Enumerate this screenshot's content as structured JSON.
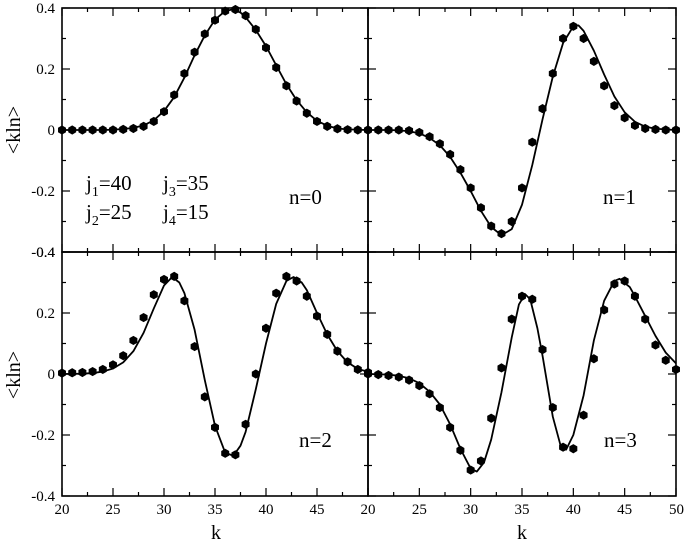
{
  "chart_data": {
    "type": "scatter",
    "layout": "2x2 panels with shared axes",
    "xlabel": "k",
    "ylabel": "<kln>",
    "xlim": [
      20,
      50
    ],
    "ylim": [
      -0.4,
      0.4
    ],
    "x_ticks": [
      "20",
      "25",
      "30",
      "35",
      "40",
      "45",
      "50"
    ],
    "y_ticks": [
      "-0.4",
      "-0.2",
      "0",
      "0.2",
      "0.4"
    ],
    "x_tick_values": [
      20,
      25,
      30,
      35,
      40,
      45,
      50
    ],
    "y_tick_values": [
      -0.4,
      -0.2,
      0,
      0.2,
      0.4
    ],
    "grid": false,
    "legend": "none",
    "point_color": "#000000",
    "line_color": "#000000",
    "annotation": {
      "j1_label": "j",
      "j1_sub": "1",
      "j1_value": "=40",
      "j2_label": "j",
      "j2_sub": "2",
      "j2_value": "=25",
      "j3_label": "j",
      "j3_sub": "3",
      "j3_value": "=35",
      "j4_label": "j",
      "j4_sub": "4",
      "j4_value": "=15"
    },
    "panels": [
      {
        "label": "n=0",
        "points": [
          [
            20,
            0.0
          ],
          [
            21,
            0.0
          ],
          [
            22,
            0.0
          ],
          [
            23,
            0.0
          ],
          [
            24,
            0.0
          ],
          [
            25,
            0.0
          ],
          [
            26,
            0.002
          ],
          [
            27,
            0.005
          ],
          [
            28,
            0.012
          ],
          [
            29,
            0.028
          ],
          [
            30,
            0.06
          ],
          [
            31,
            0.115
          ],
          [
            32,
            0.185
          ],
          [
            33,
            0.255
          ],
          [
            34,
            0.315
          ],
          [
            35,
            0.36
          ],
          [
            36,
            0.39
          ],
          [
            37,
            0.395
          ],
          [
            38,
            0.375
          ],
          [
            39,
            0.33
          ],
          [
            40,
            0.27
          ],
          [
            41,
            0.205
          ],
          [
            42,
            0.145
          ],
          [
            43,
            0.095
          ],
          [
            44,
            0.055
          ],
          [
            45,
            0.028
          ],
          [
            46,
            0.012
          ],
          [
            47,
            0.004
          ],
          [
            48,
            0.001
          ],
          [
            49,
            0.0
          ],
          [
            50,
            0.0
          ]
        ],
        "curve": [
          [
            20,
            0.0
          ],
          [
            22,
            0.0
          ],
          [
            24,
            0.0
          ],
          [
            25,
            0.001
          ],
          [
            26,
            0.003
          ],
          [
            27,
            0.007
          ],
          [
            28,
            0.015
          ],
          [
            29,
            0.032
          ],
          [
            30,
            0.062
          ],
          [
            31,
            0.108
          ],
          [
            32,
            0.172
          ],
          [
            33,
            0.245
          ],
          [
            34,
            0.31
          ],
          [
            35,
            0.362
          ],
          [
            36,
            0.39
          ],
          [
            36.7,
            0.395
          ],
          [
            37.5,
            0.385
          ],
          [
            38,
            0.37
          ],
          [
            39,
            0.328
          ],
          [
            40,
            0.275
          ],
          [
            41,
            0.212
          ],
          [
            42,
            0.15
          ],
          [
            43,
            0.098
          ],
          [
            44,
            0.058
          ],
          [
            45,
            0.03
          ],
          [
            46,
            0.014
          ],
          [
            47,
            0.005
          ],
          [
            48,
            0.002
          ],
          [
            50,
            0.0
          ]
        ]
      },
      {
        "label": "n=1",
        "points": [
          [
            20,
            0.0
          ],
          [
            21,
            0.0
          ],
          [
            22,
            0.0
          ],
          [
            23,
            0.0
          ],
          [
            24,
            -0.002
          ],
          [
            25,
            -0.008
          ],
          [
            26,
            -0.022
          ],
          [
            27,
            -0.045
          ],
          [
            28,
            -0.08
          ],
          [
            29,
            -0.13
          ],
          [
            30,
            -0.19
          ],
          [
            31,
            -0.255
          ],
          [
            32,
            -0.315
          ],
          [
            33,
            -0.34
          ],
          [
            34,
            -0.3
          ],
          [
            35,
            -0.19
          ],
          [
            36,
            -0.04
          ],
          [
            37,
            0.07
          ],
          [
            38,
            0.185
          ],
          [
            39,
            0.3
          ],
          [
            40,
            0.34
          ],
          [
            41,
            0.3
          ],
          [
            42,
            0.225
          ],
          [
            43,
            0.145
          ],
          [
            44,
            0.08
          ],
          [
            45,
            0.04
          ],
          [
            46,
            0.015
          ],
          [
            47,
            0.005
          ],
          [
            48,
            0.002
          ],
          [
            49,
            0.0
          ],
          [
            50,
            0.0
          ]
        ],
        "curve": [
          [
            20,
            0.0
          ],
          [
            22,
            0.0
          ],
          [
            23,
            -0.001
          ],
          [
            24,
            -0.004
          ],
          [
            25,
            -0.011
          ],
          [
            26,
            -0.026
          ],
          [
            27,
            -0.05
          ],
          [
            28,
            -0.088
          ],
          [
            29,
            -0.14
          ],
          [
            30,
            -0.2
          ],
          [
            31,
            -0.265
          ],
          [
            32,
            -0.318
          ],
          [
            33,
            -0.345
          ],
          [
            34,
            -0.325
          ],
          [
            35,
            -0.245
          ],
          [
            36,
            -0.115
          ],
          [
            37,
            0.035
          ],
          [
            38,
            0.175
          ],
          [
            39,
            0.285
          ],
          [
            40,
            0.34
          ],
          [
            40.5,
            0.343
          ],
          [
            41,
            0.325
          ],
          [
            42,
            0.26
          ],
          [
            43,
            0.182
          ],
          [
            44,
            0.11
          ],
          [
            45,
            0.058
          ],
          [
            46,
            0.027
          ],
          [
            47,
            0.011
          ],
          [
            48,
            0.004
          ],
          [
            50,
            0.0
          ]
        ]
      },
      {
        "label": "n=2",
        "points": [
          [
            20,
            0.003
          ],
          [
            21,
            0.004
          ],
          [
            22,
            0.005
          ],
          [
            23,
            0.008
          ],
          [
            24,
            0.015
          ],
          [
            25,
            0.03
          ],
          [
            26,
            0.06
          ],
          [
            27,
            0.11
          ],
          [
            28,
            0.185
          ],
          [
            29,
            0.26
          ],
          [
            30,
            0.31
          ],
          [
            31,
            0.32
          ],
          [
            32,
            0.24
          ],
          [
            33,
            0.09
          ],
          [
            34,
            -0.075
          ],
          [
            35,
            -0.175
          ],
          [
            36,
            -0.26
          ],
          [
            37,
            -0.265
          ],
          [
            38,
            -0.165
          ],
          [
            39,
            0.0
          ],
          [
            40,
            0.15
          ],
          [
            41,
            0.265
          ],
          [
            42,
            0.32
          ],
          [
            43,
            0.305
          ],
          [
            44,
            0.255
          ],
          [
            45,
            0.19
          ],
          [
            46,
            0.13
          ],
          [
            47,
            0.075
          ],
          [
            48,
            0.04
          ],
          [
            49,
            0.015
          ],
          [
            50,
            0.005
          ]
        ],
        "curve": [
          [
            20,
            0.0
          ],
          [
            22,
            0.001
          ],
          [
            23,
            0.003
          ],
          [
            24,
            0.008
          ],
          [
            25,
            0.018
          ],
          [
            26,
            0.038
          ],
          [
            27,
            0.075
          ],
          [
            28,
            0.135
          ],
          [
            29,
            0.215
          ],
          [
            30,
            0.29
          ],
          [
            30.8,
            0.318
          ],
          [
            31.5,
            0.3
          ],
          [
            32,
            0.265
          ],
          [
            33,
            0.145
          ],
          [
            34,
            -0.02
          ],
          [
            35,
            -0.17
          ],
          [
            36,
            -0.258
          ],
          [
            36.8,
            -0.268
          ],
          [
            37.5,
            -0.235
          ],
          [
            38,
            -0.19
          ],
          [
            39,
            -0.05
          ],
          [
            40,
            0.1
          ],
          [
            41,
            0.23
          ],
          [
            42,
            0.305
          ],
          [
            42.7,
            0.318
          ],
          [
            43.5,
            0.3
          ],
          [
            44,
            0.275
          ],
          [
            45,
            0.2
          ],
          [
            46,
            0.13
          ],
          [
            47,
            0.075
          ],
          [
            48,
            0.038
          ],
          [
            49,
            0.017
          ],
          [
            50,
            0.007
          ]
        ]
      },
      {
        "label": "n=3",
        "points": [
          [
            20,
            0.0
          ],
          [
            21,
            -0.002
          ],
          [
            22,
            -0.005
          ],
          [
            23,
            -0.01
          ],
          [
            24,
            -0.02
          ],
          [
            25,
            -0.038
          ],
          [
            26,
            -0.065
          ],
          [
            27,
            -0.11
          ],
          [
            28,
            -0.175
          ],
          [
            29,
            -0.25
          ],
          [
            30,
            -0.315
          ],
          [
            31,
            -0.285
          ],
          [
            32,
            -0.145
          ],
          [
            33,
            0.02
          ],
          [
            34,
            0.18
          ],
          [
            35,
            0.255
          ],
          [
            36,
            0.245
          ],
          [
            37,
            0.08
          ],
          [
            38,
            -0.11
          ],
          [
            39,
            -0.24
          ],
          [
            40,
            -0.245
          ],
          [
            41,
            -0.135
          ],
          [
            42,
            0.05
          ],
          [
            43,
            0.21
          ],
          [
            44,
            0.295
          ],
          [
            45,
            0.305
          ],
          [
            46,
            0.255
          ],
          [
            47,
            0.18
          ],
          [
            48,
            0.095
          ],
          [
            49,
            0.045
          ],
          [
            50,
            0.015
          ]
        ],
        "curve": [
          [
            20,
            0.0
          ],
          [
            22,
            -0.002
          ],
          [
            23,
            -0.006
          ],
          [
            24,
            -0.014
          ],
          [
            25,
            -0.03
          ],
          [
            26,
            -0.058
          ],
          [
            27,
            -0.1
          ],
          [
            28,
            -0.165
          ],
          [
            29,
            -0.245
          ],
          [
            30,
            -0.31
          ],
          [
            30.6,
            -0.32
          ],
          [
            31.3,
            -0.29
          ],
          [
            32,
            -0.215
          ],
          [
            33,
            -0.06
          ],
          [
            34,
            0.12
          ],
          [
            34.7,
            0.228
          ],
          [
            35.3,
            0.262
          ],
          [
            35.8,
            0.245
          ],
          [
            36.5,
            0.15
          ],
          [
            37,
            0.06
          ],
          [
            38,
            -0.14
          ],
          [
            38.8,
            -0.24
          ],
          [
            39.3,
            -0.248
          ],
          [
            40,
            -0.2
          ],
          [
            41,
            -0.07
          ],
          [
            42,
            0.11
          ],
          [
            43,
            0.24
          ],
          [
            44,
            0.305
          ],
          [
            44.5,
            0.312
          ],
          [
            45.5,
            0.285
          ],
          [
            46,
            0.255
          ],
          [
            47,
            0.19
          ],
          [
            48,
            0.125
          ],
          [
            49,
            0.07
          ],
          [
            50,
            0.035
          ]
        ]
      }
    ]
  }
}
